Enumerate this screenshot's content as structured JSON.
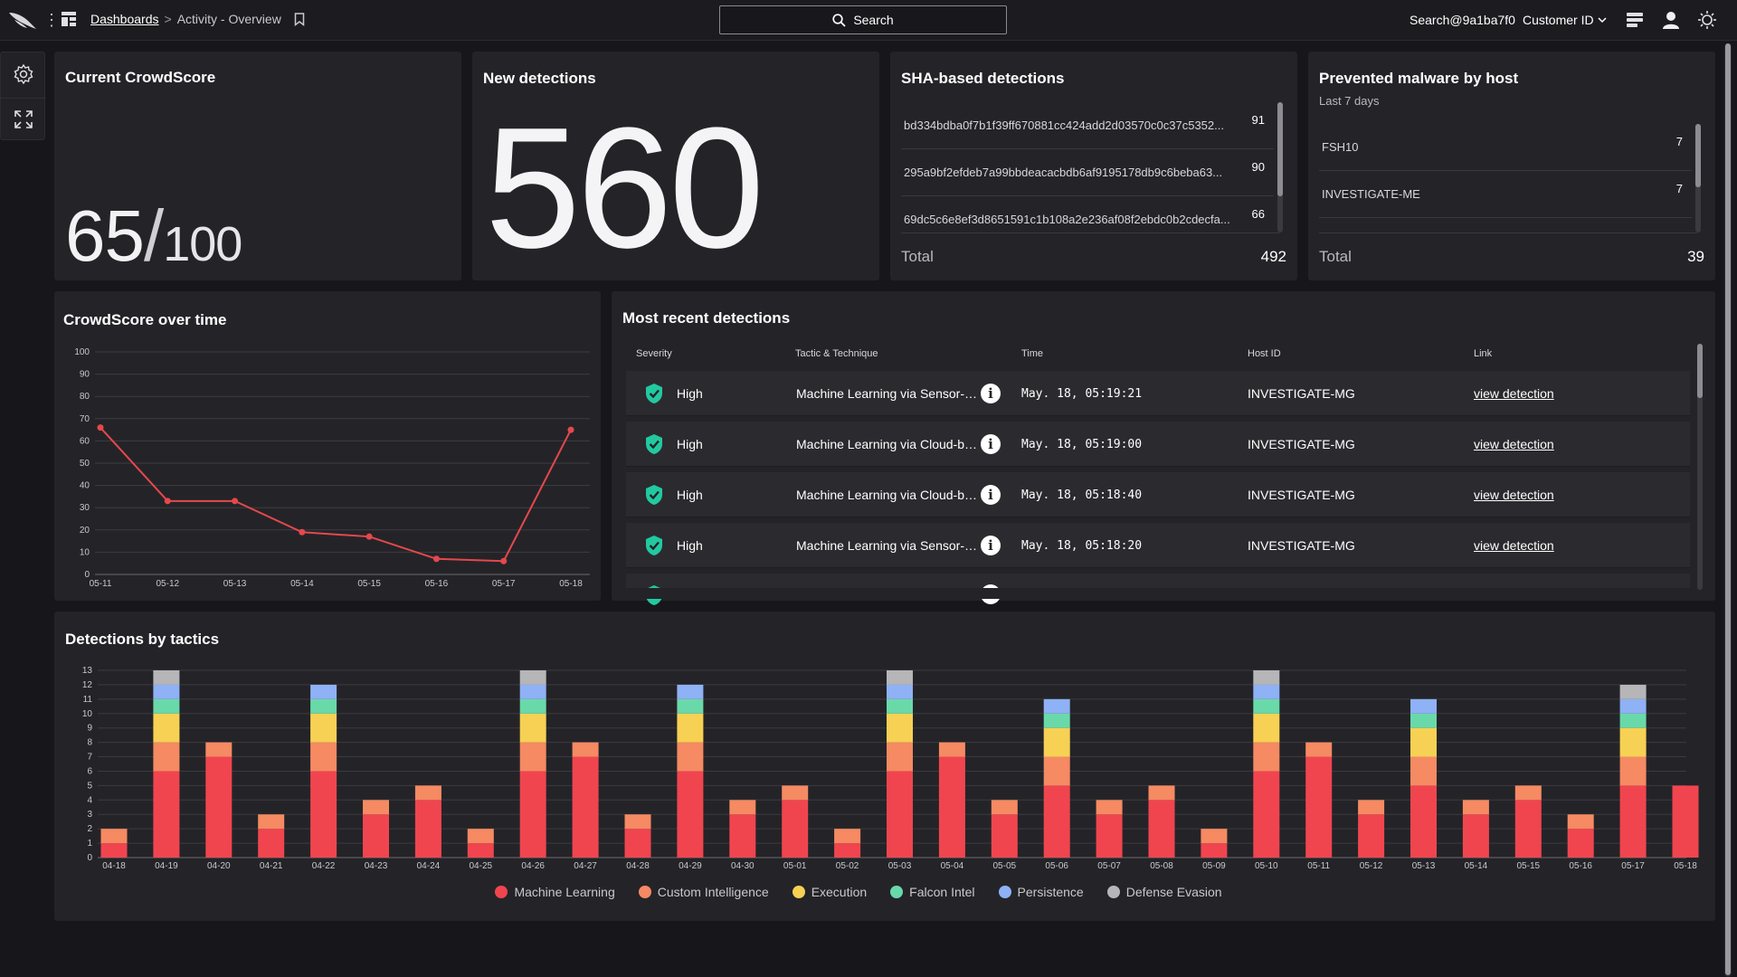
{
  "topbar": {
    "breadcrumb_root": "Dashboards",
    "breadcrumb_sep": ">",
    "breadcrumb_current": "Activity - Overview",
    "search_label": "Search",
    "user": "Search@9a1ba7f0",
    "customer_label": "Customer ID"
  },
  "crowdscore": {
    "title": "Current CrowdScore",
    "value": "65",
    "slash": "/",
    "max": "100"
  },
  "new_detections": {
    "title": "New detections",
    "value": "560"
  },
  "sha_detections": {
    "title": "SHA-based detections",
    "rows": [
      {
        "hash": "bd334bdba0f7b1f39ff670881cc424add2d03570c0c37c5352...",
        "count": "91"
      },
      {
        "hash": "295a9bf2efdeb7a99bbdeacacbdb6af9195178db9c6beba63...",
        "count": "90"
      },
      {
        "hash": "69dc5c6e8ef3d8651591c1b108a2e236af08f2ebdc0b2cdecfa...",
        "count": "66"
      }
    ],
    "total_label": "Total",
    "total": "492"
  },
  "prevented_malware": {
    "title": "Prevented malware by host",
    "subtitle": "Last 7 days",
    "rows": [
      {
        "host": "FSH10",
        "count": "7"
      },
      {
        "host": "INVESTIGATE-ME",
        "count": "7"
      }
    ],
    "total_label": "Total",
    "total": "39"
  },
  "crowdscore_chart": {
    "title": "CrowdScore over time",
    "accent": "#e5484d"
  },
  "recent_detections": {
    "title": "Most recent detections",
    "columns": {
      "severity": "Severity",
      "tactic": "Tactic & Technique",
      "time": "Time",
      "host": "Host ID",
      "link": "Link"
    },
    "rows": [
      {
        "severity": "High",
        "tactic": "Machine Learning via Sensor-based ML",
        "time": "May. 18, 05:19:21",
        "host": "INVESTIGATE-MG",
        "link": "view detection"
      },
      {
        "severity": "High",
        "tactic": "Machine Learning via Cloud-based ML",
        "time": "May. 18, 05:19:00",
        "host": "INVESTIGATE-MG",
        "link": "view detection"
      },
      {
        "severity": "High",
        "tactic": "Machine Learning via Cloud-based ML",
        "time": "May. 18, 05:18:40",
        "host": "INVESTIGATE-MG",
        "link": "view detection"
      },
      {
        "severity": "High",
        "tactic": "Machine Learning via Sensor-based ML",
        "time": "May. 18, 05:18:20",
        "host": "INVESTIGATE-MG",
        "link": "view detection"
      }
    ],
    "info_glyph": "i"
  },
  "tactics_chart": {
    "title": "Detections by tactics",
    "colors": {
      "Machine Learning": "#f0454f",
      "Custom Intelligence": "#f58a63",
      "Execution": "#f7d154",
      "Falcon Intel": "#6ad9a9",
      "Persistence": "#8fb1f5",
      "Defense Evasion": "#b6b6b8"
    }
  },
  "chart_data": [
    {
      "type": "line",
      "title": "CrowdScore over time",
      "x": [
        "05-11",
        "05-12",
        "05-13",
        "05-14",
        "05-15",
        "05-16",
        "05-17",
        "05-18"
      ],
      "series": [
        {
          "values": [
            66,
            33,
            33,
            19,
            17,
            7,
            6,
            65
          ]
        }
      ],
      "yticks": [
        0,
        10,
        20,
        30,
        40,
        50,
        60,
        70,
        80,
        90,
        100
      ],
      "ylim": [
        0,
        100
      ],
      "grid": true
    },
    {
      "type": "bar",
      "stacked": true,
      "title": "Detections by tactics",
      "categories": [
        "04-18",
        "04-19",
        "04-20",
        "04-21",
        "04-22",
        "04-23",
        "04-24",
        "04-25",
        "04-26",
        "04-27",
        "04-28",
        "04-29",
        "04-30",
        "05-01",
        "05-02",
        "05-03",
        "05-04",
        "05-05",
        "05-06",
        "05-07",
        "05-08",
        "05-09",
        "05-10",
        "05-11",
        "05-12",
        "05-13",
        "05-14",
        "05-15",
        "05-16",
        "05-17",
        "05-18"
      ],
      "series": [
        {
          "name": "Machine Learning",
          "values": [
            1,
            6,
            7,
            2,
            6,
            3,
            4,
            1,
            6,
            7,
            2,
            6,
            3,
            4,
            1,
            6,
            7,
            3,
            5,
            3,
            4,
            1,
            6,
            7,
            3,
            5,
            3,
            4,
            2,
            5,
            5
          ]
        },
        {
          "name": "Custom Intelligence",
          "values": [
            1,
            2,
            1,
            1,
            2,
            1,
            1,
            1,
            2,
            1,
            1,
            2,
            1,
            1,
            1,
            2,
            1,
            1,
            2,
            1,
            1,
            1,
            2,
            1,
            1,
            2,
            1,
            1,
            1,
            2,
            0
          ]
        },
        {
          "name": "Execution",
          "values": [
            0,
            2,
            0,
            0,
            2,
            0,
            0,
            0,
            2,
            0,
            0,
            2,
            0,
            0,
            0,
            2,
            0,
            0,
            2,
            0,
            0,
            0,
            2,
            0,
            0,
            2,
            0,
            0,
            0,
            2,
            0
          ]
        },
        {
          "name": "Falcon Intel",
          "values": [
            0,
            1,
            0,
            0,
            1,
            0,
            0,
            0,
            1,
            0,
            0,
            1,
            0,
            0,
            0,
            1,
            0,
            0,
            1,
            0,
            0,
            0,
            1,
            0,
            0,
            1,
            0,
            0,
            0,
            1,
            0
          ]
        },
        {
          "name": "Persistence",
          "values": [
            0,
            1,
            0,
            0,
            1,
            0,
            0,
            0,
            1,
            0,
            0,
            1,
            0,
            0,
            0,
            1,
            0,
            0,
            1,
            0,
            0,
            0,
            1,
            0,
            0,
            1,
            0,
            0,
            0,
            1,
            0
          ]
        },
        {
          "name": "Defense Evasion",
          "values": [
            0,
            1,
            0,
            0,
            0,
            0,
            0,
            0,
            1,
            0,
            0,
            0,
            0,
            0,
            0,
            1,
            0,
            0,
            0,
            0,
            0,
            0,
            1,
            0,
            0,
            0,
            0,
            0,
            0,
            1,
            0
          ]
        }
      ],
      "yticks": [
        0,
        1,
        2,
        3,
        4,
        5,
        6,
        7,
        8,
        9,
        10,
        11,
        12,
        13
      ],
      "ylim": [
        0,
        13
      ],
      "grid": true,
      "legend": "bottom-center"
    }
  ]
}
